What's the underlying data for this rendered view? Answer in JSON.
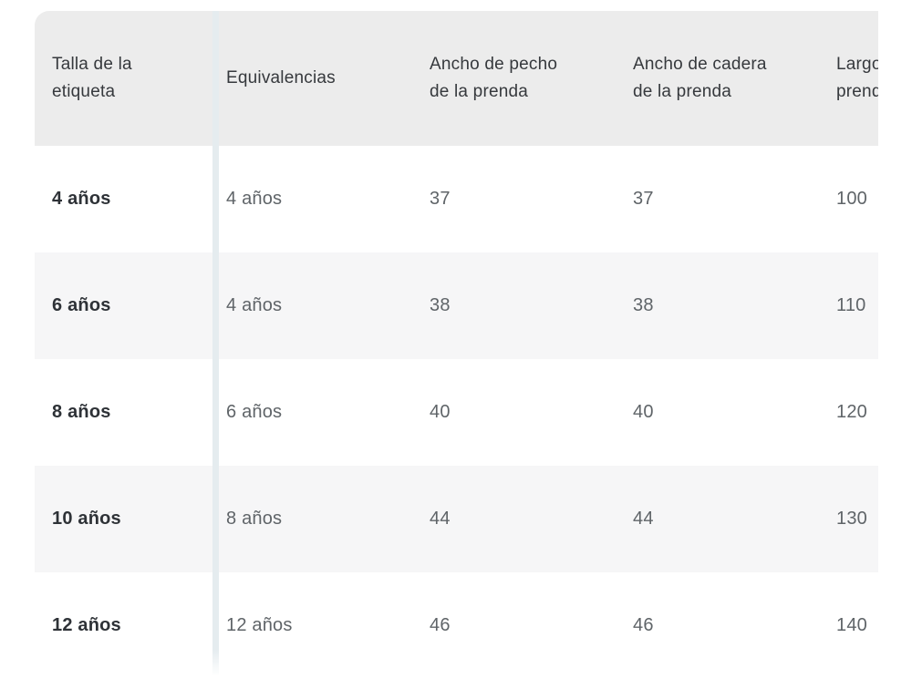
{
  "size_chart": {
    "columns": [
      {
        "key": "talla",
        "label": "Talla de la\netiqueta"
      },
      {
        "key": "equivalencias",
        "label": "Equivalencias"
      },
      {
        "key": "ancho_pecho",
        "label": "Ancho de pecho\nde la prenda"
      },
      {
        "key": "ancho_cadera",
        "label": "Ancho de cadera\nde la prenda"
      },
      {
        "key": "largo",
        "label": "Largo de la\nprenda"
      }
    ],
    "rows": [
      {
        "talla": "4 años",
        "equivalencias": "4 años",
        "ancho_pecho": "37",
        "ancho_cadera": "37",
        "largo": "100"
      },
      {
        "talla": "6 años",
        "equivalencias": "4 años",
        "ancho_pecho": "38",
        "ancho_cadera": "38",
        "largo": "110"
      },
      {
        "talla": "8 años",
        "equivalencias": "6 años",
        "ancho_pecho": "40",
        "ancho_cadera": "40",
        "largo": "120"
      },
      {
        "talla": "10 años",
        "equivalencias": "8 años",
        "ancho_pecho": "44",
        "ancho_cadera": "44",
        "largo": "130"
      },
      {
        "talla": "12 años",
        "equivalencias": "12 años",
        "ancho_pecho": "46",
        "ancho_cadera": "46",
        "largo": "140"
      }
    ],
    "colors": {
      "page_bg": "#ffffff",
      "header_bg": "#ececec",
      "stripe_bg": "#f6f6f7",
      "row_bg": "#ffffff",
      "divider": "#e5ecef",
      "header_text": "#36393d",
      "label_text": "#2e3237",
      "value_text": "#5f6468"
    }
  }
}
